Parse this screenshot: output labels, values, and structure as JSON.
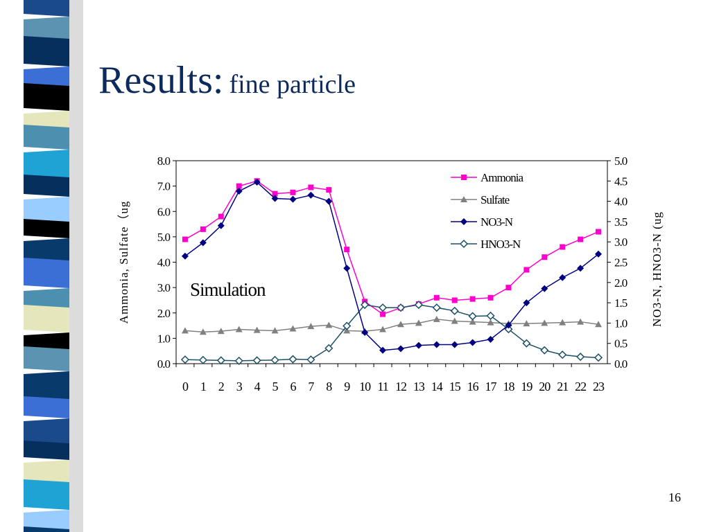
{
  "slide": {
    "title_main": "Results:",
    "title_sub": "fine particle",
    "page_number": "16"
  },
  "colors": {
    "title": "#0d2a5c",
    "ammonia": "#ff00cc",
    "sulfate": "#808080",
    "no3n": "#000080",
    "hno3n": "#1c4f66",
    "stripes": [
      "#1a4a8a",
      "#5b93b0",
      "#062f5e",
      "#3c6fd6",
      "#000000",
      "#e6e6bc",
      "#4d8fae",
      "#1fa3d5",
      "#99ccff",
      "#083a6b"
    ]
  },
  "chart_data": {
    "type": "line",
    "annotation": "Simulation",
    "ylabel": "Ammonia, Sulfate（ug",
    "y2label": "NO3-N, HNO3-N (ug",
    "ylim": [
      0,
      8
    ],
    "y2lim": [
      0,
      5
    ],
    "grid": false,
    "legend_position": "top-right",
    "x": [
      0,
      1,
      2,
      3,
      4,
      5,
      6,
      7,
      8,
      9,
      10,
      11,
      12,
      13,
      14,
      15,
      16,
      17,
      18,
      19,
      20,
      21,
      22,
      23
    ],
    "y_ticks": [
      "0.0",
      "1.0",
      "2.0",
      "3.0",
      "4.0",
      "5.0",
      "6.0",
      "7.0",
      "8.0"
    ],
    "y2_ticks": [
      "0.0",
      "0.5",
      "1.0",
      "1.5",
      "2.0",
      "2.5",
      "3.0",
      "3.5",
      "4.0",
      "4.5",
      "5.0"
    ],
    "series": [
      {
        "name": "Ammonia",
        "axis": "left",
        "marker": "square",
        "color": "#ff00cc",
        "values": [
          4.9,
          5.3,
          5.8,
          7.0,
          7.2,
          6.7,
          6.75,
          6.95,
          6.85,
          4.5,
          2.45,
          1.95,
          2.2,
          2.35,
          2.6,
          2.5,
          2.55,
          2.6,
          3.0,
          3.7,
          4.2,
          4.6,
          4.9,
          5.2
        ]
      },
      {
        "name": "Sulfate",
        "axis": "left",
        "marker": "triangle",
        "color": "#808080",
        "values": [
          1.3,
          1.25,
          1.28,
          1.35,
          1.32,
          1.3,
          1.38,
          1.47,
          1.52,
          1.3,
          1.28,
          1.35,
          1.55,
          1.6,
          1.75,
          1.68,
          1.65,
          1.62,
          1.58,
          1.58,
          1.6,
          1.62,
          1.65,
          1.55
        ]
      },
      {
        "name": "NO3-N",
        "axis": "right",
        "marker": "diamond",
        "color": "#000080",
        "values": [
          2.65,
          2.98,
          3.4,
          4.25,
          4.47,
          4.07,
          4.05,
          4.15,
          4.0,
          2.35,
          0.77,
          0.33,
          0.37,
          0.45,
          0.47,
          0.47,
          0.52,
          0.6,
          0.95,
          1.5,
          1.85,
          2.12,
          2.35,
          2.7
        ]
      },
      {
        "name": "HNO3-N",
        "axis": "right",
        "marker": "diamond-open",
        "color": "#1c4f66",
        "values": [
          0.1,
          0.09,
          0.08,
          0.07,
          0.08,
          0.09,
          0.11,
          0.1,
          0.38,
          0.93,
          1.45,
          1.38,
          1.38,
          1.45,
          1.38,
          1.3,
          1.17,
          1.18,
          0.85,
          0.5,
          0.33,
          0.22,
          0.17,
          0.15
        ]
      }
    ]
  }
}
